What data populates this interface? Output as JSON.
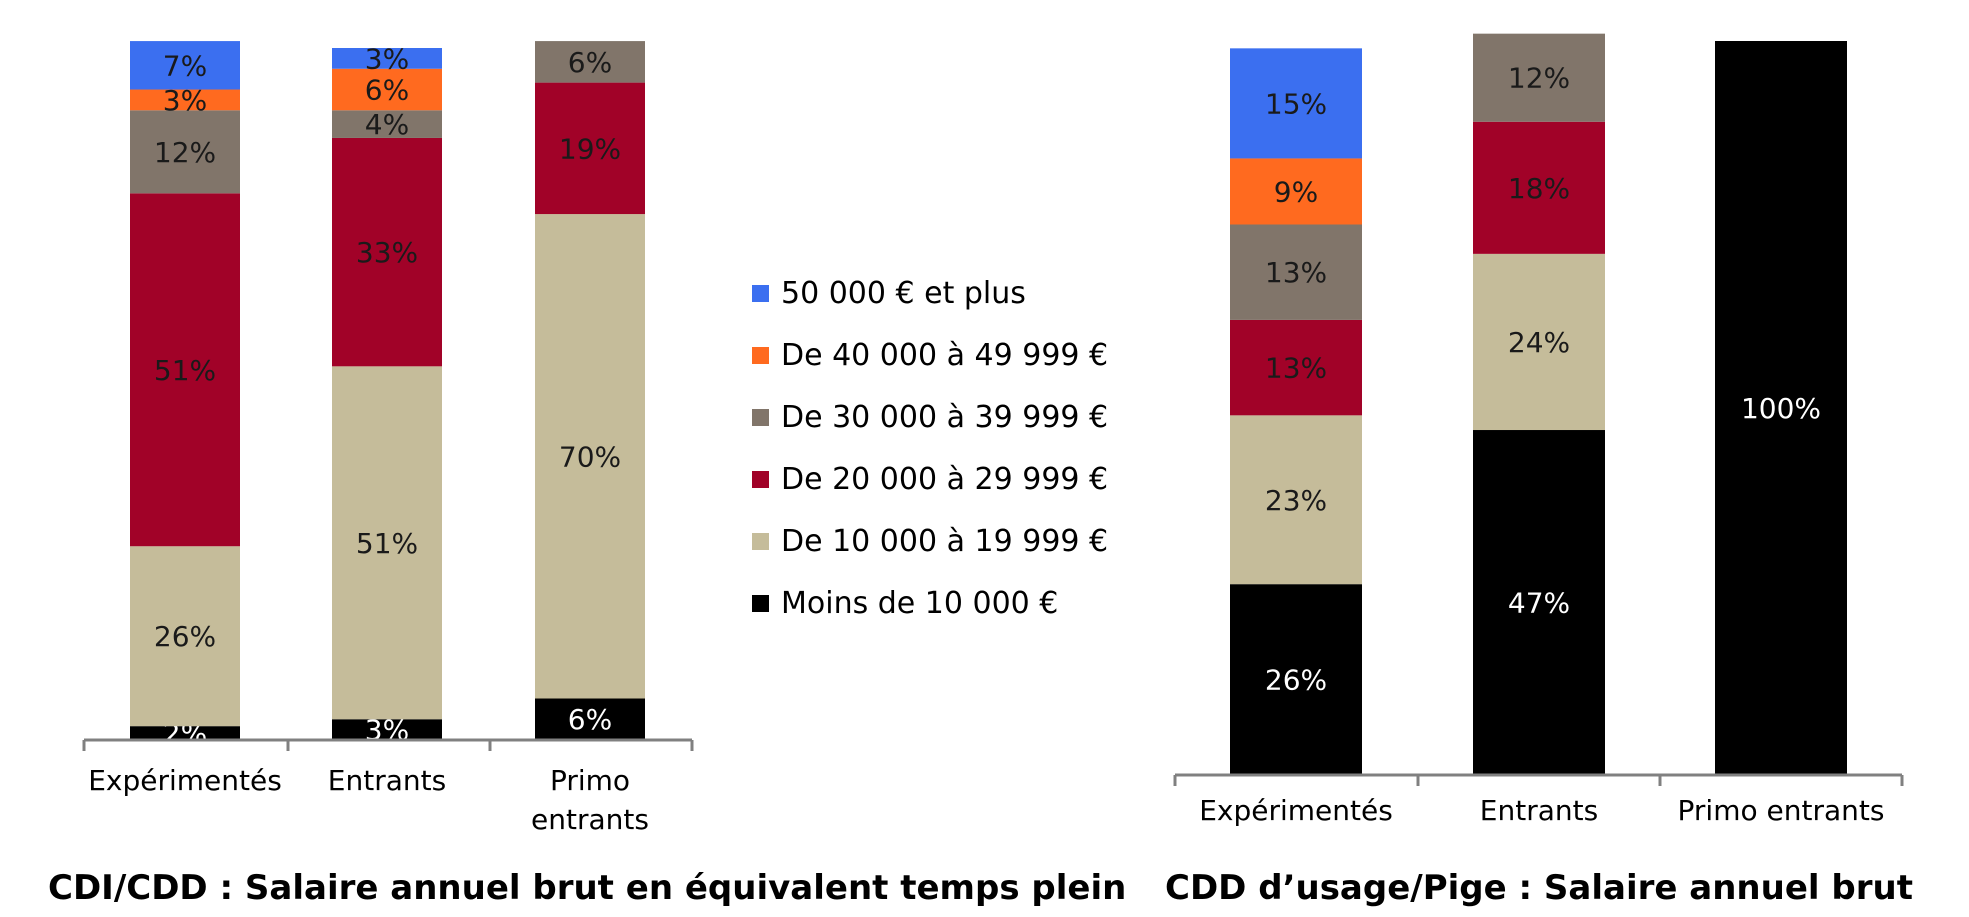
{
  "legend": [
    {
      "label": "50 000 € et plus",
      "color": "#3b6ff0"
    },
    {
      "label": "De 40 000 à 49 999 €",
      "color": "#ff6a1f"
    },
    {
      "label": "De 30 000 à 39 999 €",
      "color": "#81756a"
    },
    {
      "label": "De 20 000 à 29 999 €",
      "color": "#a10228"
    },
    {
      "label": "De 10 000 à 19 999 €",
      "color": "#c5bc9a"
    },
    {
      "label": "Moins de 10 000 €",
      "color": "#000000"
    }
  ],
  "chart_data": [
    {
      "type": "bar",
      "stacked": true,
      "title": "CDI/CDD : Salaire annuel brut en équivalent temps plein",
      "categories": [
        [
          "Expérimentés"
        ],
        [
          "Entrants"
        ],
        [
          "Primo",
          "entrants"
        ]
      ],
      "ylim": [
        0,
        100
      ],
      "series": [
        {
          "name": "Moins de 10 000 €",
          "values": [
            2,
            3,
            6
          ],
          "labels": [
            "2%",
            "3%",
            "6%"
          ]
        },
        {
          "name": "De 10 000 à 19 999 €",
          "values": [
            26,
            51,
            70
          ],
          "labels": [
            "26%",
            "51%",
            "70%"
          ]
        },
        {
          "name": "De 20 000 à 29 999 €",
          "values": [
            51,
            33,
            19
          ],
          "labels": [
            "51%",
            "33%",
            "19%"
          ]
        },
        {
          "name": "De 30 000 à 39 999 €",
          "values": [
            12,
            4,
            6
          ],
          "labels": [
            "12%",
            "4%",
            "6%"
          ]
        },
        {
          "name": "De 40 000 à 49 999 €",
          "values": [
            3,
            6,
            0
          ],
          "labels": [
            "3%",
            "6%",
            ""
          ]
        },
        {
          "name": "50 000 € et plus",
          "values": [
            7,
            3,
            0
          ],
          "labels": [
            "7%",
            "3%",
            ""
          ]
        }
      ]
    },
    {
      "type": "bar",
      "stacked": true,
      "title": "CDD d’usage/Pige : Salaire annuel brut",
      "categories": [
        [
          "Expérimentés"
        ],
        [
          "Entrants"
        ],
        [
          "Primo entrants"
        ]
      ],
      "ylim": [
        0,
        100
      ],
      "series": [
        {
          "name": "Moins de 10 000 €",
          "values": [
            26,
            47,
            100
          ],
          "labels": [
            "26%",
            "47%",
            "100%"
          ]
        },
        {
          "name": "De 10 000 à 19 999 €",
          "values": [
            23,
            24,
            0
          ],
          "labels": [
            "23%",
            "24%",
            ""
          ]
        },
        {
          "name": "De 20 000 à 29 999 €",
          "values": [
            13,
            18,
            0
          ],
          "labels": [
            "13%",
            "18%",
            ""
          ]
        },
        {
          "name": "De 30 000 à 39 999 €",
          "values": [
            13,
            12,
            0
          ],
          "labels": [
            "13%",
            "12%",
            ""
          ]
        },
        {
          "name": "De 40 000 à 49 999 €",
          "values": [
            9,
            0,
            0
          ],
          "labels": [
            "9%",
            "",
            ""
          ]
        },
        {
          "name": "50 000 € et plus",
          "values": [
            15,
            0,
            0
          ],
          "labels": [
            "15%",
            "",
            ""
          ]
        }
      ]
    }
  ]
}
